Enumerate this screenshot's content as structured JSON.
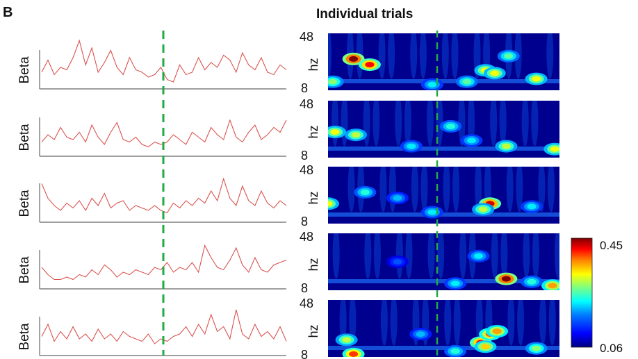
{
  "figure": {
    "panel_label": "B",
    "title": "Individual trials"
  },
  "chart_data": [
    {
      "type": "line",
      "ylabel": "Beta",
      "grid": false,
      "event_marker": "vertical dashed line at stimulus onset",
      "rows": [
        {
          "trial": 1,
          "values": [
            0.3,
            0.55,
            0.25,
            0.4,
            0.35,
            0.6,
            0.95,
            0.45,
            0.8,
            0.3,
            0.5,
            0.75,
            0.4,
            0.25,
            0.6,
            0.35,
            0.3,
            0.2,
            0.25,
            0.4,
            0.15,
            0.1,
            0.45,
            0.25,
            0.3,
            0.6,
            0.35,
            0.5,
            0.4,
            0.65,
            0.55,
            0.3,
            0.7,
            0.45,
            0.35,
            0.6,
            0.3,
            0.25,
            0.45,
            0.35
          ]
        },
        {
          "trial": 2,
          "values": [
            0.25,
            0.4,
            0.3,
            0.55,
            0.35,
            0.3,
            0.45,
            0.25,
            0.6,
            0.35,
            0.2,
            0.45,
            0.65,
            0.3,
            0.25,
            0.35,
            0.2,
            0.15,
            0.25,
            0.2,
            0.25,
            0.4,
            0.3,
            0.2,
            0.45,
            0.35,
            0.25,
            0.55,
            0.4,
            0.3,
            0.7,
            0.35,
            0.25,
            0.45,
            0.6,
            0.3,
            0.4,
            0.55,
            0.45,
            0.7
          ]
        },
        {
          "trial": 3,
          "values": [
            0.75,
            0.45,
            0.3,
            0.2,
            0.35,
            0.25,
            0.4,
            0.2,
            0.45,
            0.3,
            0.55,
            0.25,
            0.35,
            0.4,
            0.2,
            0.3,
            0.25,
            0.2,
            0.3,
            0.2,
            0.15,
            0.35,
            0.25,
            0.4,
            0.3,
            0.45,
            0.35,
            0.6,
            0.4,
            0.85,
            0.45,
            0.3,
            0.7,
            0.4,
            0.3,
            0.6,
            0.35,
            0.25,
            0.4,
            0.3
          ]
        },
        {
          "trial": 4,
          "values": [
            0.4,
            0.25,
            0.15,
            0.15,
            0.2,
            0.15,
            0.25,
            0.2,
            0.35,
            0.25,
            0.45,
            0.35,
            0.2,
            0.3,
            0.25,
            0.35,
            0.3,
            0.25,
            0.4,
            0.35,
            0.5,
            0.3,
            0.4,
            0.35,
            0.5,
            0.3,
            0.85,
            0.6,
            0.4,
            0.35,
            0.55,
            0.8,
            0.45,
            0.3,
            0.6,
            0.35,
            0.3,
            0.45,
            0.5,
            0.55
          ]
        },
        {
          "trial": 5,
          "values": [
            0.35,
            0.6,
            0.25,
            0.45,
            0.3,
            0.55,
            0.3,
            0.4,
            0.25,
            0.5,
            0.3,
            0.4,
            0.25,
            0.45,
            0.35,
            0.3,
            0.25,
            0.4,
            0.2,
            0.3,
            0.25,
            0.35,
            0.4,
            0.55,
            0.35,
            0.6,
            0.4,
            0.8,
            0.45,
            0.55,
            0.3,
            0.9,
            0.4,
            0.3,
            0.6,
            0.35,
            0.45,
            0.3,
            0.55,
            0.25
          ]
        }
      ]
    },
    {
      "type": "heatmap",
      "ylabel": "hz",
      "ytick_labels": [
        "48",
        "8"
      ],
      "colorbar": {
        "max_label": "0.45",
        "min_label": "0.06",
        "min": 0.06,
        "max": 0.45
      },
      "colormap": [
        "#00007f",
        "#0000ff",
        "#007fff",
        "#00ffff",
        "#7fff7f",
        "#ffff00",
        "#ff7f00",
        "#ff0000",
        "#7f0000"
      ],
      "event_marker": "vertical dashed line at stimulus onset",
      "rows": [
        {
          "trial": 1,
          "hotspots": [
            {
              "t": 0.11,
              "f": 0.55,
              "power": 0.45
            },
            {
              "t": 0.18,
              "f": 0.45,
              "power": 0.4
            },
            {
              "t": 0.02,
              "f": 0.15,
              "power": 0.26
            },
            {
              "t": 0.6,
              "f": 0.15,
              "power": 0.24
            },
            {
              "t": 0.68,
              "f": 0.35,
              "power": 0.3
            },
            {
              "t": 0.72,
              "f": 0.3,
              "power": 0.3
            },
            {
              "t": 0.9,
              "f": 0.2,
              "power": 0.3
            },
            {
              "t": 0.78,
              "f": 0.6,
              "power": 0.24
            },
            {
              "t": 0.45,
              "f": 0.1,
              "power": 0.2
            }
          ]
        },
        {
          "trial": 2,
          "hotspots": [
            {
              "t": 0.03,
              "f": 0.45,
              "power": 0.3
            },
            {
              "t": 0.12,
              "f": 0.4,
              "power": 0.28
            },
            {
              "t": 0.36,
              "f": 0.2,
              "power": 0.2
            },
            {
              "t": 0.53,
              "f": 0.55,
              "power": 0.22
            },
            {
              "t": 0.77,
              "f": 0.2,
              "power": 0.28
            },
            {
              "t": 0.98,
              "f": 0.15,
              "power": 0.3
            },
            {
              "t": 0.62,
              "f": 0.3,
              "power": 0.2
            }
          ]
        },
        {
          "trial": 3,
          "hotspots": [
            {
              "t": 0.0,
              "f": 0.35,
              "power": 0.3
            },
            {
              "t": 0.16,
              "f": 0.55,
              "power": 0.22
            },
            {
              "t": 0.7,
              "f": 0.35,
              "power": 0.42
            },
            {
              "t": 0.67,
              "f": 0.25,
              "power": 0.28
            },
            {
              "t": 0.88,
              "f": 0.3,
              "power": 0.2
            },
            {
              "t": 0.45,
              "f": 0.2,
              "power": 0.2
            },
            {
              "t": 0.3,
              "f": 0.45,
              "power": 0.18
            }
          ]
        },
        {
          "trial": 4,
          "hotspots": [
            {
              "t": 0.77,
              "f": 0.2,
              "power": 0.45
            },
            {
              "t": 0.97,
              "f": 0.08,
              "power": 0.34
            },
            {
              "t": 0.88,
              "f": 0.15,
              "power": 0.22
            },
            {
              "t": 0.55,
              "f": 0.12,
              "power": 0.2
            },
            {
              "t": 0.3,
              "f": 0.5,
              "power": 0.14
            },
            {
              "t": 0.65,
              "f": 0.6,
              "power": 0.2
            }
          ]
        },
        {
          "trial": 5,
          "hotspots": [
            {
              "t": 0.11,
              "f": 0.05,
              "power": 0.38
            },
            {
              "t": 0.08,
              "f": 0.3,
              "power": 0.28
            },
            {
              "t": 0.66,
              "f": 0.25,
              "power": 0.4
            },
            {
              "t": 0.7,
              "f": 0.4,
              "power": 0.36
            },
            {
              "t": 0.73,
              "f": 0.45,
              "power": 0.34
            },
            {
              "t": 0.68,
              "f": 0.18,
              "power": 0.32
            },
            {
              "t": 0.9,
              "f": 0.15,
              "power": 0.26
            },
            {
              "t": 0.55,
              "f": 0.1,
              "power": 0.22
            },
            {
              "t": 0.4,
              "f": 0.4,
              "power": 0.18
            }
          ]
        }
      ]
    }
  ],
  "colors": {
    "trace": "#d9534f",
    "axis": "#666666",
    "marker": "#22aa44",
    "bg_low": "#00008f"
  }
}
